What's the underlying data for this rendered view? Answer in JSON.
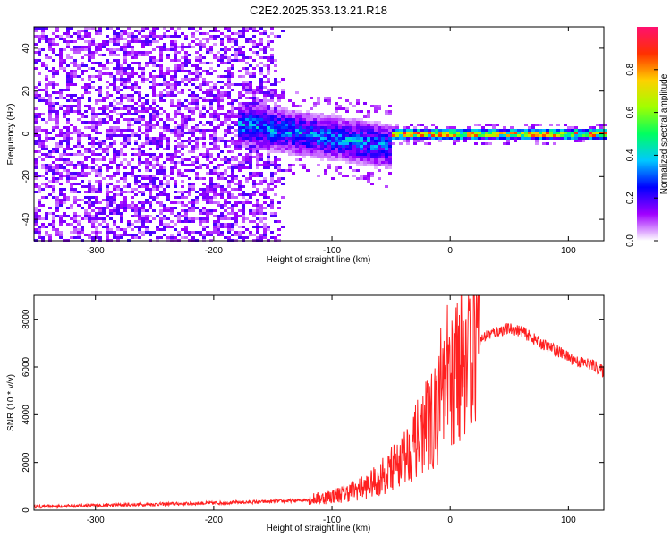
{
  "title": "C2E2.2025.353.13.21.R18",
  "chart_data": [
    {
      "type": "heatmap",
      "name": "spectrogram",
      "xlabel": "Height of straight line (km)",
      "ylabel": "Frequency (Hz)",
      "xlim": [
        -352,
        130
      ],
      "ylim": [
        -50,
        50
      ],
      "xticks": [
        -300,
        -200,
        -100,
        0,
        100
      ],
      "yticks": [
        -40,
        -20,
        0,
        20,
        40
      ],
      "colorbar": {
        "label": "Normalized spectral amplitude",
        "range": [
          0,
          1
        ],
        "ticks": [
          0.0,
          0.2,
          0.4,
          0.6,
          0.8
        ],
        "tick_labels": [
          "0.0",
          "0.2",
          "0.4",
          "0.6",
          "0.8"
        ],
        "colormap": [
          "#ffffff",
          "#a000ff",
          "#0000ff",
          "#00c8ff",
          "#00ff60",
          "#a0ff00",
          "#ffd000",
          "#ff3000",
          "#ff1070"
        ]
      },
      "regions": [
        {
          "x_range": [
            -352,
            -140
          ],
          "f_range": [
            -50,
            50
          ],
          "amplitude": 0.1,
          "description_level": "noise"
        },
        {
          "x_range": [
            -180,
            -50
          ],
          "f_center": 5,
          "f_halfwidth": 12,
          "amplitude": 0.35
        },
        {
          "x_range": [
            -50,
            130
          ],
          "f_center": 0.5,
          "f_halfwidth": 3,
          "amplitude": 0.9
        }
      ]
    },
    {
      "type": "line",
      "name": "snr",
      "xlabel": "Height of straight line (km)",
      "ylabel": "SNR (10 * v/v)",
      "xlim": [
        -352,
        130
      ],
      "ylim": [
        0,
        9000
      ],
      "xticks": [
        -300,
        -200,
        -100,
        0,
        100
      ],
      "yticks": [
        0,
        2000,
        4000,
        6000,
        8000
      ],
      "color": "#ff2020",
      "series": [
        {
          "name": "SNR",
          "x": [
            -352,
            -300,
            -250,
            -200,
            -160,
            -130,
            -110,
            -90,
            -70,
            -60,
            -50,
            -40,
            -30,
            -25,
            -20,
            -15,
            -10,
            -5,
            0,
            5,
            10,
            15,
            20,
            30,
            40,
            50,
            60,
            70,
            80,
            90,
            100,
            110,
            120,
            130
          ],
          "y": [
            150,
            200,
            250,
            300,
            350,
            400,
            500,
            700,
            1000,
            1300,
            1700,
            2200,
            2800,
            3200,
            3500,
            3800,
            4000,
            4600,
            5200,
            5700,
            6200,
            6600,
            6900,
            7300,
            7500,
            7600,
            7500,
            7200,
            6900,
            6700,
            6400,
            6200,
            6100,
            5800
          ]
        }
      ]
    }
  ]
}
